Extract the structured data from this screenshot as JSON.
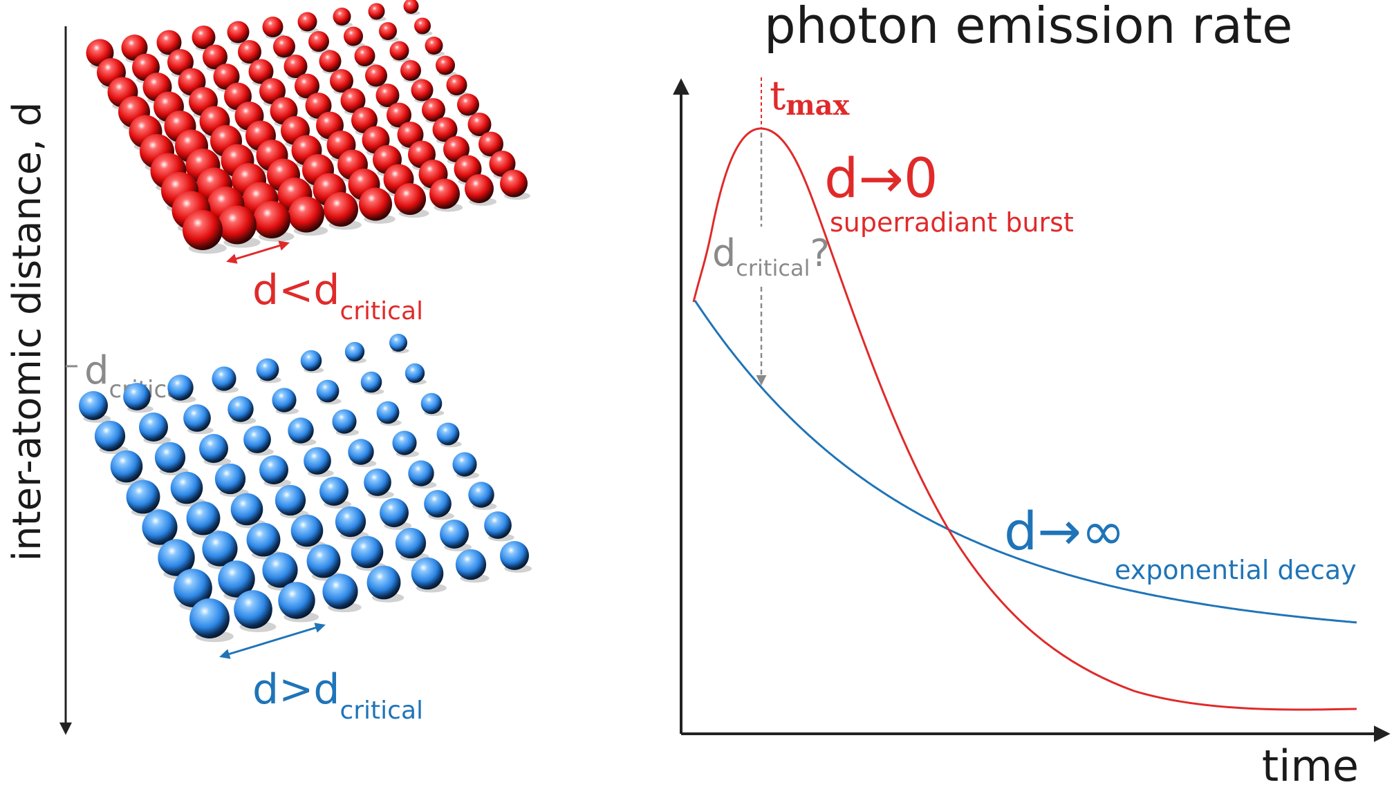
{
  "colors": {
    "red": "#e02a2a",
    "blue": "#1f74b8",
    "gray": "#8a8a8a",
    "axis": "#222222",
    "text": "#1a1a1a"
  },
  "left_panel": {
    "axis_label": "inter-atomic distance, d",
    "tick_label": {
      "main": "d",
      "sub": "critical"
    },
    "red_lattice_label": {
      "main": "d<d",
      "sub": "critical"
    },
    "blue_lattice_label": {
      "main": "d>d",
      "sub": "critical"
    }
  },
  "chart": {
    "title": "photon emission rate",
    "xlabel": "time",
    "tmax_label": {
      "main": "t",
      "sub": "max"
    },
    "dcrit_label": {
      "main": "d",
      "sub": "critical",
      "suffix": "?"
    },
    "red_curve": {
      "label": "d→0",
      "sublabel": "superradiant burst"
    },
    "blue_curve": {
      "label": "d→∞",
      "sublabel": "exponential decay"
    }
  },
  "chart_data": {
    "type": "line",
    "title": "photon emission rate",
    "xlabel": "time",
    "ylabel": "",
    "series": [
      {
        "name": "d→0",
        "description": "superradiant burst"
      },
      {
        "name": "d→∞",
        "description": "exponential decay"
      }
    ],
    "annotations": [
      "t max",
      "d critical?"
    ]
  }
}
